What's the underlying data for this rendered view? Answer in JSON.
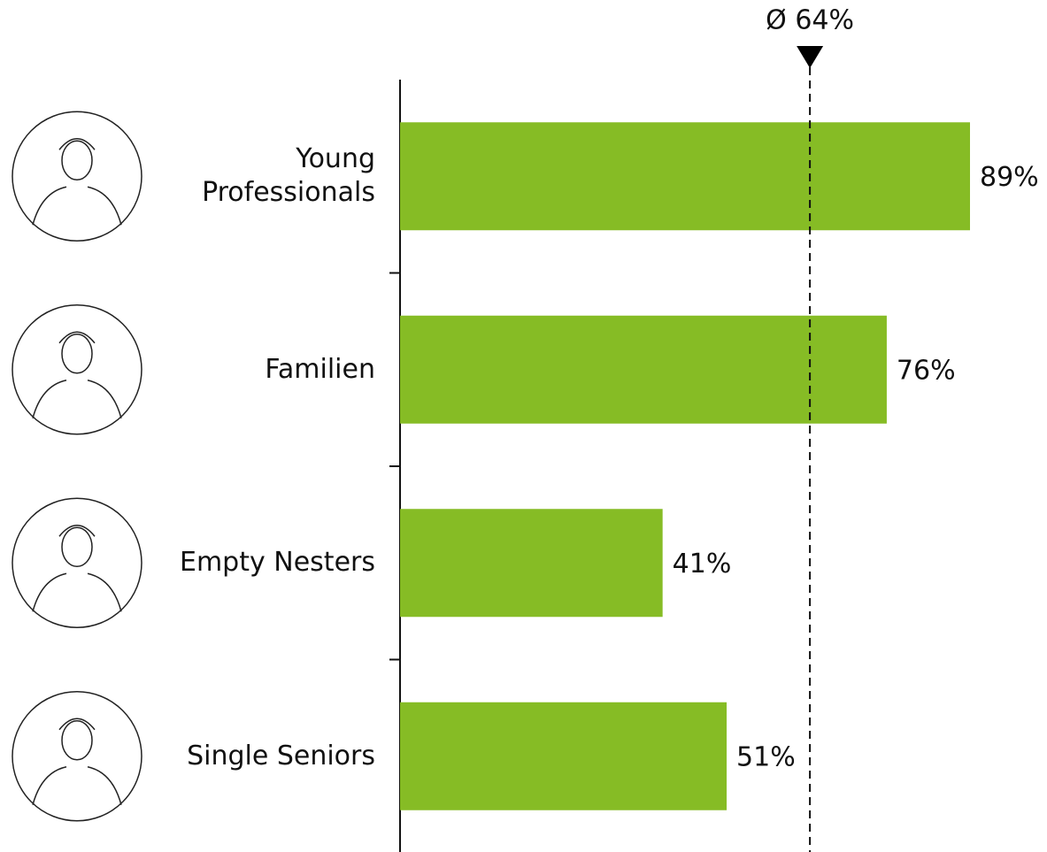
{
  "chart_data": {
    "type": "barh",
    "categories": [
      "Young Professionals",
      "Familien",
      "Empty Nesters",
      "Single Seniors"
    ],
    "values": [
      89,
      76,
      41,
      51
    ],
    "value_labels": [
      "89%",
      "76%",
      "41%",
      "51%"
    ],
    "color": "#86bc25",
    "xlim": [
      0,
      100
    ],
    "reference": {
      "value": 64,
      "label": "Ø 64%"
    }
  }
}
